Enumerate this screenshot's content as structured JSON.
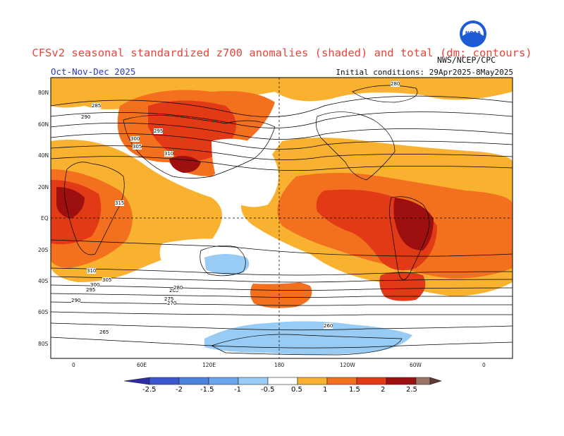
{
  "header": {
    "title": "CFSv2 seasonal standardized z700 anomalies (shaded) and total (dm; contours)",
    "period": "Oct-Nov-Dec 2025",
    "initial_conditions": "Initial conditions: 29Apr2025-8May2025",
    "agency": "NWS/NCEP/CPC",
    "logo_text": "NOAA"
  },
  "map": {
    "lat_labels": [
      "80N",
      "60N",
      "40N",
      "20N",
      "EQ",
      "20S",
      "40S",
      "60S",
      "80S"
    ],
    "lon_labels": [
      "0",
      "60E",
      "120E",
      "180",
      "120W",
      "60W",
      "0"
    ],
    "contour_labels": [
      "280",
      "285",
      "290",
      "295",
      "300",
      "305",
      "310",
      "315",
      "310",
      "305",
      "300",
      "295",
      "290",
      "285",
      "280",
      "275",
      "270",
      "265",
      "260"
    ]
  },
  "colorbar": {
    "ticks": [
      "-2.5",
      "-2",
      "-1.5",
      "-1",
      "-0.5",
      "0.5",
      "1",
      "1.5",
      "2",
      "2.5"
    ],
    "colors": {
      "neg_2_5": "#2e2ca6",
      "neg_2": "#3c55d0",
      "neg_1_5": "#4a82e0",
      "neg_1": "#6aa6ee",
      "neg_0_5": "#99ccf5",
      "neutral": "#ffffff",
      "pos_0_5": "#f9b230",
      "pos_1": "#f3701e",
      "pos_1_5": "#e23a16",
      "pos_2": "#9e0f0f",
      "pos_2_5": "#9a7468",
      "pos_max": "#5e3a30"
    }
  }
}
